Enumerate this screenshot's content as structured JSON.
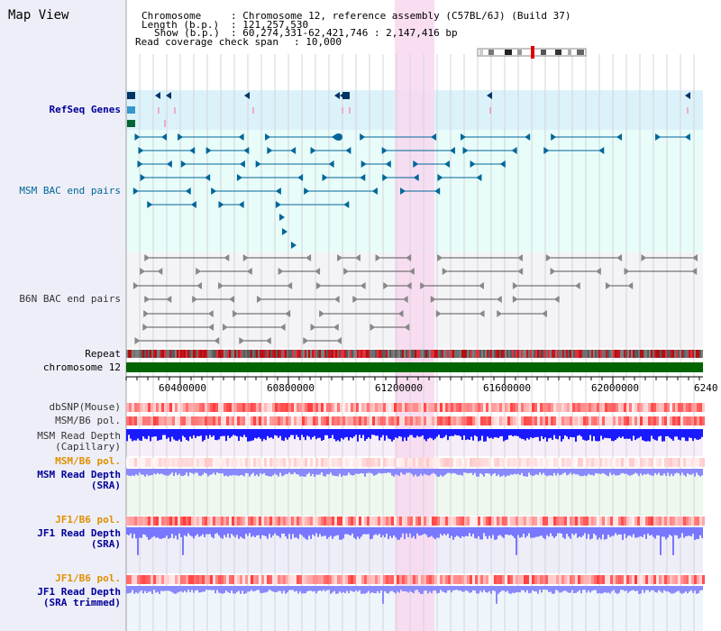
{
  "view_title": "Map View",
  "header": {
    "chromosome_key": "Chromosome",
    "chromosome_value": ": Chromosome 12, reference assembly (C57BL/6J) (Build 37)",
    "length_key": "Length (b.p.)",
    "length_value": ": 121,257,530",
    "show_key": "Show (b.p.)",
    "show_value": ": 60,274,331-62,421,746 : 2,147,416 bp",
    "coverage_key": "Read coverage check span",
    "coverage_value": ": 10,000"
  },
  "tracks": {
    "refseq": "RefSeq Genes",
    "msm_bac": "MSM BAC end pairs",
    "b6n_bac": "B6N BAC end pairs",
    "repeat": "Repeat",
    "chromosome": "chromosome 12",
    "dbsnp": "dbSNP(Mouse)",
    "msm_b6_pol": "MSM/B6 pol.",
    "msm_depth_cap_1": "MSM Read Depth",
    "msm_depth_cap_2": "(Capillary)",
    "msm_b6_pol_2": "MSM/B6 pol.",
    "msm_depth_sra_1": "MSM Read Depth",
    "msm_depth_sra_2": "(SRA)",
    "jf1_b6_pol": "JF1/B6 pol.",
    "jf1_depth_sra_1": "JF1 Read Depth",
    "jf1_depth_sra_2": "(SRA)",
    "jf1_b6_pol_2": "JF1/B6 pol.",
    "jf1_depth_trim_1": "JF1 Read Depth",
    "jf1_depth_trim_2": "(SRA trimmed)"
  },
  "axis": {
    "ticks": [
      "60400000",
      "60800000",
      "61200000",
      "61600000",
      "62000000",
      "6240"
    ]
  },
  "colors": {
    "sidebar": "#eeeef8",
    "refseq_bg": "#dcf2fa",
    "msm_bg": "#e8fcfa",
    "highlight": "#f8d8f0",
    "chromosome": "#006400",
    "label_blue": "#000099",
    "label_orange": "#e09000",
    "depth_dark": "#1a1aff",
    "depth_light": "#8888ff"
  }
}
